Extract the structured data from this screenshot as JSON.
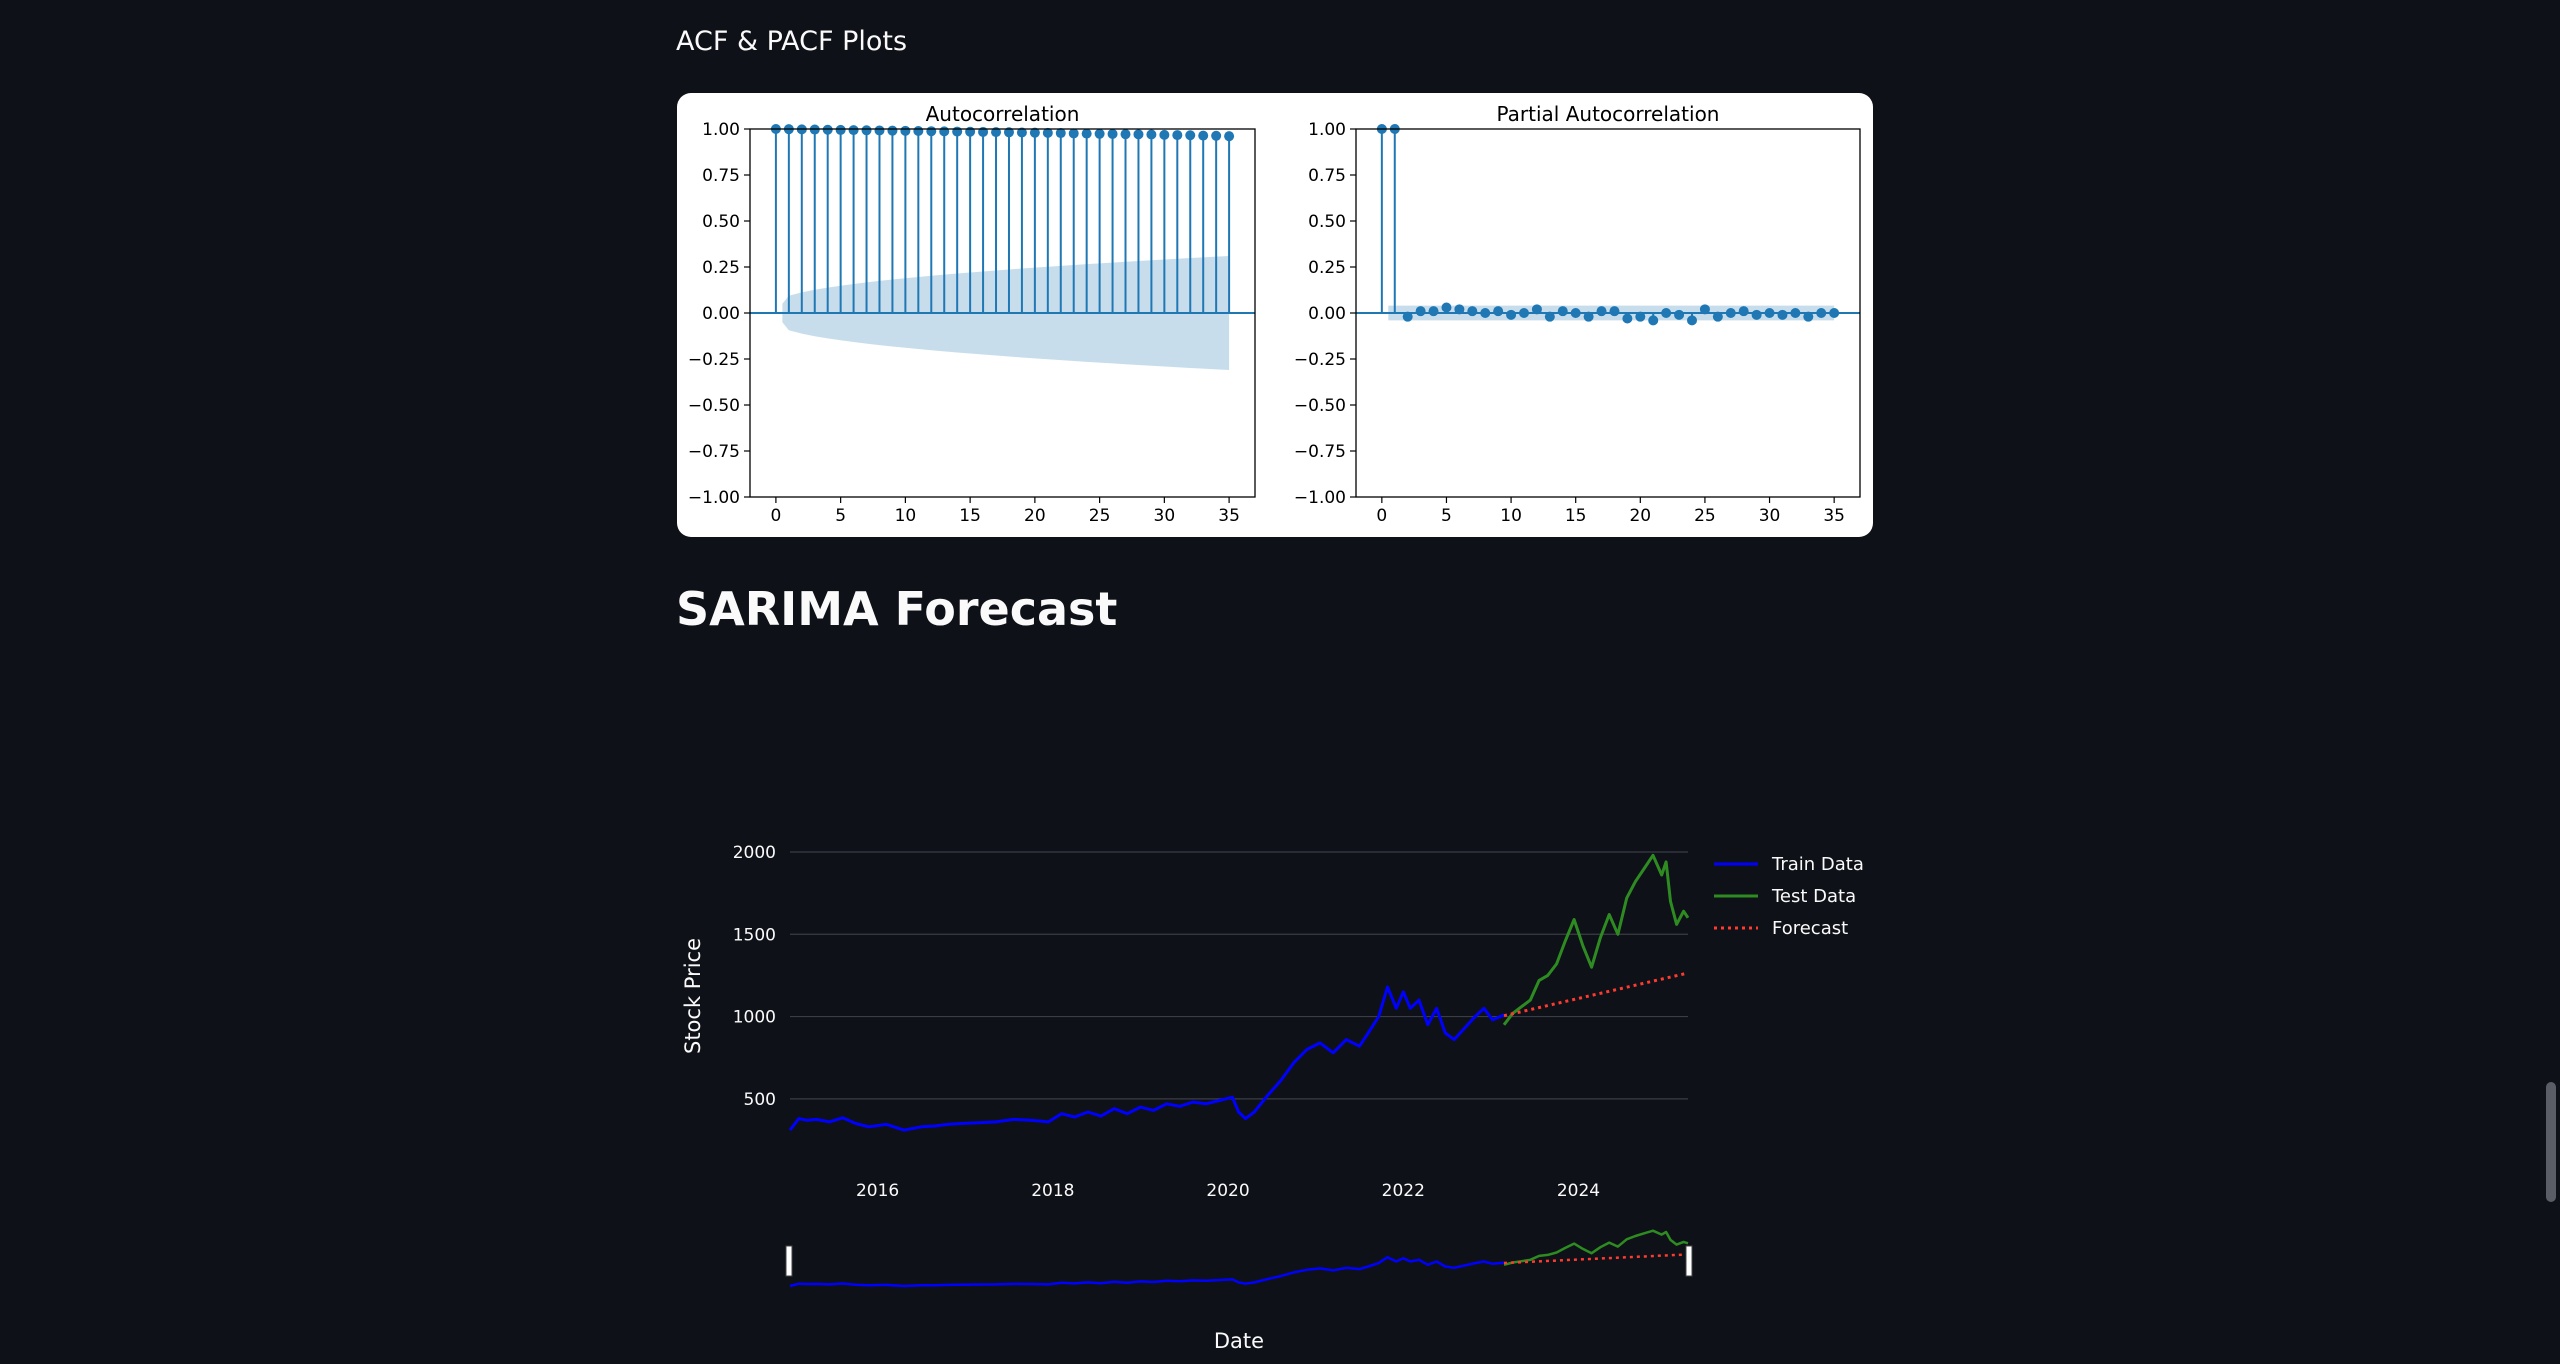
{
  "headings": {
    "acf_section": "ACF & PACF Plots",
    "forecast_section": "SARIMA Forecast"
  },
  "chart_data": [
    {
      "type": "stem",
      "title": "Autocorrelation",
      "xlim": [
        -2,
        37
      ],
      "ylim": [
        -1.0,
        1.0
      ],
      "x_ticks": [
        0,
        5,
        10,
        15,
        20,
        25,
        30,
        35
      ],
      "y_ticks": [
        "1.00",
        "0.75",
        "0.50",
        "0.25",
        "0.00",
        "−0.25",
        "−0.50",
        "−0.75",
        "−1.00"
      ],
      "lags": [
        0,
        1,
        2,
        3,
        4,
        5,
        6,
        7,
        8,
        9,
        10,
        11,
        12,
        13,
        14,
        15,
        16,
        17,
        18,
        19,
        20,
        21,
        22,
        23,
        24,
        25,
        26,
        27,
        28,
        29,
        30,
        31,
        32,
        33,
        34,
        35
      ],
      "values": [
        1.0,
        0.999,
        0.998,
        0.997,
        0.996,
        0.995,
        0.994,
        0.993,
        0.992,
        0.991,
        0.99,
        0.989,
        0.988,
        0.987,
        0.986,
        0.985,
        0.984,
        0.983,
        0.982,
        0.981,
        0.98,
        0.979,
        0.978,
        0.976,
        0.975,
        0.974,
        0.973,
        0.972,
        0.971,
        0.97,
        0.968,
        0.967,
        0.966,
        0.964,
        0.963,
        0.961
      ],
      "confidence_band": [
        0.05,
        0.31
      ]
    },
    {
      "type": "stem",
      "title": "Partial Autocorrelation",
      "xlim": [
        -2,
        37
      ],
      "ylim": [
        -1.0,
        1.0
      ],
      "x_ticks": [
        0,
        5,
        10,
        15,
        20,
        25,
        30,
        35
      ],
      "y_ticks": [
        "1.00",
        "0.75",
        "0.50",
        "0.25",
        "0.00",
        "−0.25",
        "−0.50",
        "−0.75",
        "−1.00"
      ],
      "lags": [
        0,
        1,
        2,
        3,
        4,
        5,
        6,
        7,
        8,
        9,
        10,
        11,
        12,
        13,
        14,
        15,
        16,
        17,
        18,
        19,
        20,
        21,
        22,
        23,
        24,
        25,
        26,
        27,
        28,
        29,
        30,
        31,
        32,
        33,
        34,
        35
      ],
      "values": [
        1.0,
        1.0,
        -0.02,
        0.01,
        0.01,
        0.03,
        0.02,
        0.01,
        0.0,
        0.01,
        -0.01,
        0.0,
        0.02,
        -0.02,
        0.01,
        0.0,
        -0.02,
        0.01,
        0.01,
        -0.03,
        -0.02,
        -0.04,
        0.0,
        -0.01,
        -0.04,
        0.02,
        -0.02,
        0.0,
        0.01,
        -0.01,
        0.0,
        -0.01,
        0.0,
        -0.02,
        0.0,
        0.0
      ],
      "confidence_band": 0.04
    },
    {
      "type": "line",
      "xlabel": "Date",
      "ylabel": "Stock Price",
      "x_range": [
        2015.0,
        2025.25
      ],
      "y_range": [
        250,
        2000
      ],
      "x_ticks": [
        "2016",
        "2018",
        "2020",
        "2022",
        "2024"
      ],
      "y_ticks": [
        "2000",
        "1500",
        "1000",
        "500"
      ],
      "legend_position": "right",
      "series": [
        {
          "name": "Train Data",
          "color": "#0000ff",
          "style": "solid",
          "x": [
            2015.0,
            2015.1,
            2015.2,
            2015.3,
            2015.45,
            2015.6,
            2015.75,
            2015.9,
            2016.1,
            2016.3,
            2016.5,
            2016.65,
            2016.8,
            2016.95,
            2017.15,
            2017.35,
            2017.55,
            2017.75,
            2017.95,
            2018.1,
            2018.25,
            2018.4,
            2018.55,
            2018.7,
            2018.85,
            2019.0,
            2019.15,
            2019.3,
            2019.45,
            2019.6,
            2019.75,
            2019.9,
            2020.05,
            2020.12,
            2020.2,
            2020.3,
            2020.45,
            2020.6,
            2020.75,
            2020.9,
            2021.05,
            2021.2,
            2021.35,
            2021.5,
            2021.6,
            2021.72,
            2021.82,
            2021.92,
            2022.0,
            2022.08,
            2022.18,
            2022.28,
            2022.38,
            2022.48,
            2022.58,
            2022.7,
            2022.82,
            2022.92,
            2023.02,
            2023.15
          ],
          "y": [
            310,
            380,
            370,
            375,
            360,
            385,
            350,
            330,
            345,
            310,
            330,
            335,
            345,
            350,
            355,
            360,
            375,
            370,
            360,
            410,
            390,
            420,
            395,
            440,
            410,
            450,
            430,
            470,
            455,
            480,
            470,
            490,
            510,
            420,
            380,
            420,
            520,
            610,
            720,
            800,
            840,
            780,
            860,
            820,
            900,
            1000,
            1180,
            1050,
            1150,
            1050,
            1100,
            950,
            1050,
            900,
            860,
            930,
            1000,
            1050,
            980,
            1010
          ]
        },
        {
          "name": "Test Data",
          "color": "#2e8b22",
          "style": "solid",
          "x": [
            2023.15,
            2023.25,
            2023.35,
            2023.45,
            2023.55,
            2023.65,
            2023.75,
            2023.85,
            2023.95,
            2024.05,
            2024.15,
            2024.25,
            2024.35,
            2024.45,
            2024.55,
            2024.65,
            2024.75,
            2024.85,
            2024.95,
            2025.0,
            2025.05,
            2025.12,
            2025.2,
            2025.25
          ],
          "y": [
            950,
            1020,
            1060,
            1100,
            1220,
            1250,
            1320,
            1460,
            1590,
            1430,
            1300,
            1480,
            1620,
            1500,
            1720,
            1820,
            1900,
            1980,
            1860,
            1940,
            1700,
            1560,
            1640,
            1600
          ]
        },
        {
          "name": "Forecast",
          "color": "#ff3b30",
          "style": "dotted",
          "x": [
            2023.15,
            2025.25
          ],
          "y": [
            1005,
            1265
          ]
        }
      ]
    }
  ]
}
